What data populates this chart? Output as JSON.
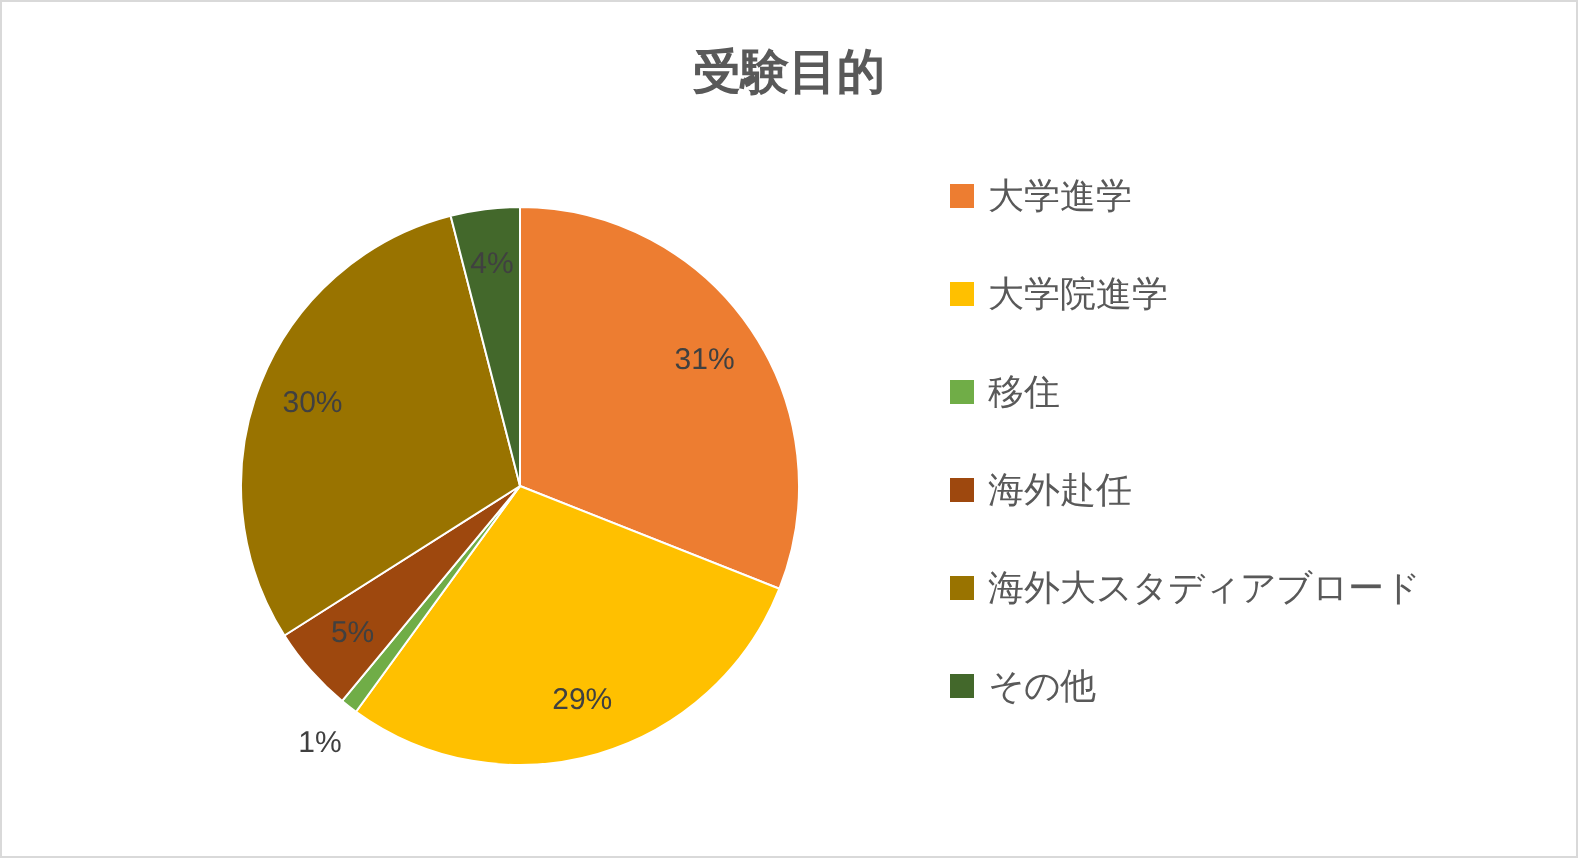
{
  "chart_data": {
    "type": "pie",
    "title": "受験目的",
    "categories": [
      "大学進学",
      "大学院進学",
      "移住",
      "海外赴任",
      "海外大スタディアブロード",
      "その他"
    ],
    "values": [
      31,
      29,
      1,
      5,
      30,
      4
    ],
    "colors": [
      "#ed7d31",
      "#ffc000",
      "#70ad47",
      "#9e480e",
      "#997300",
      "#43682b"
    ],
    "value_labels": [
      "31%",
      "29%",
      "1%",
      "5%",
      "30%",
      "4%"
    ],
    "legend": "right"
  }
}
